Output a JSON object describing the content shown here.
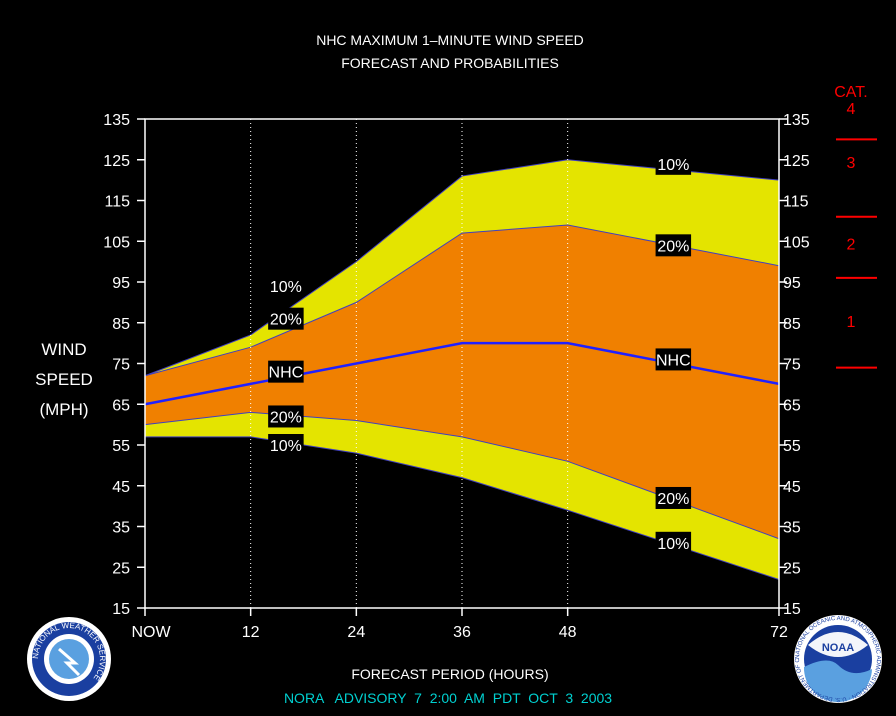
{
  "chart_data": {
    "type": "area",
    "title": "NHC MAXIMUM 1–MINUTE WIND SPEED",
    "subtitle": "FORECAST AND PROBABILITIES",
    "xlabel": "FORECAST PERIOD (HOURS)",
    "ylabel_lines": [
      "WIND",
      "SPEED",
      "(MPH)"
    ],
    "footer": "NORA   ADVISORY  7  2:00  AM  PDT  OCT  3  2003",
    "xlim": [
      0,
      72
    ],
    "ylim": [
      15,
      135
    ],
    "x_ticks": [
      {
        "x": 0,
        "label": "NOW"
      },
      {
        "x": 12,
        "label": "12"
      },
      {
        "x": 24,
        "label": "24"
      },
      {
        "x": 36,
        "label": "36"
      },
      {
        "x": 48,
        "label": "48"
      },
      {
        "x": 72,
        "label": "72"
      }
    ],
    "y_ticks": [
      15,
      25,
      35,
      45,
      55,
      65,
      75,
      85,
      95,
      105,
      115,
      125,
      135
    ],
    "grid_x": [
      12,
      24,
      36,
      48
    ],
    "x": [
      0,
      12,
      24,
      36,
      48,
      72
    ],
    "series": [
      {
        "name": "10%",
        "role": "upper",
        "values": [
          72,
          82,
          100,
          121,
          125,
          120
        ]
      },
      {
        "name": "20%",
        "role": "upper",
        "values": [
          72,
          79,
          90,
          107,
          109,
          99
        ]
      },
      {
        "name": "NHC",
        "role": "forecast",
        "values": [
          65,
          70,
          75,
          80,
          80,
          70
        ]
      },
      {
        "name": "20%",
        "role": "lower",
        "values": [
          60,
          63,
          61,
          57,
          51,
          32
        ]
      },
      {
        "name": "10%",
        "role": "lower",
        "values": [
          57,
          57,
          53,
          47,
          39,
          22
        ]
      }
    ],
    "band_labels": [
      {
        "text": "10%",
        "x": 16,
        "y": 94
      },
      {
        "text": "20%",
        "x": 16,
        "y": 86
      },
      {
        "text": "NHC",
        "x": 16,
        "y": 73
      },
      {
        "text": "20%",
        "x": 16,
        "y": 62
      },
      {
        "text": "10%",
        "x": 16,
        "y": 55
      },
      {
        "text": "10%",
        "x": 60,
        "y": 124
      },
      {
        "text": "20%",
        "x": 60,
        "y": 104
      },
      {
        "text": "NHC",
        "x": 60,
        "y": 76
      },
      {
        "text": "20%",
        "x": 60,
        "y": 42
      },
      {
        "text": "10%",
        "x": 60,
        "y": 31
      }
    ],
    "category_scale": {
      "title": "CAT.",
      "categories": [
        {
          "label": "4",
          "y": 135
        },
        {
          "label": "3",
          "y": 123
        },
        {
          "label": "2",
          "y": 103
        },
        {
          "label": "1",
          "y": 84
        }
      ],
      "boundaries": [
        130,
        111,
        96,
        74
      ]
    },
    "colors": {
      "outer_band": "#e4e400",
      "inner_band": "#f08000",
      "nhc_line": "#2020ff",
      "band_edge": "#4040c0",
      "category": "#ff0000",
      "footer": "#00d0d0",
      "grid": "#ffffff"
    }
  },
  "logos": {
    "left": "nws-logo",
    "right": "noaa-logo",
    "left_text": "NATIONAL WEATHER SERVICE",
    "right_text": "NATIONAL OCEANIC AND ATMOSPHERIC ADMINISTRATION · U.S. DEPARTMENT OF COMMERCE",
    "noaa_word": "NOAA"
  }
}
